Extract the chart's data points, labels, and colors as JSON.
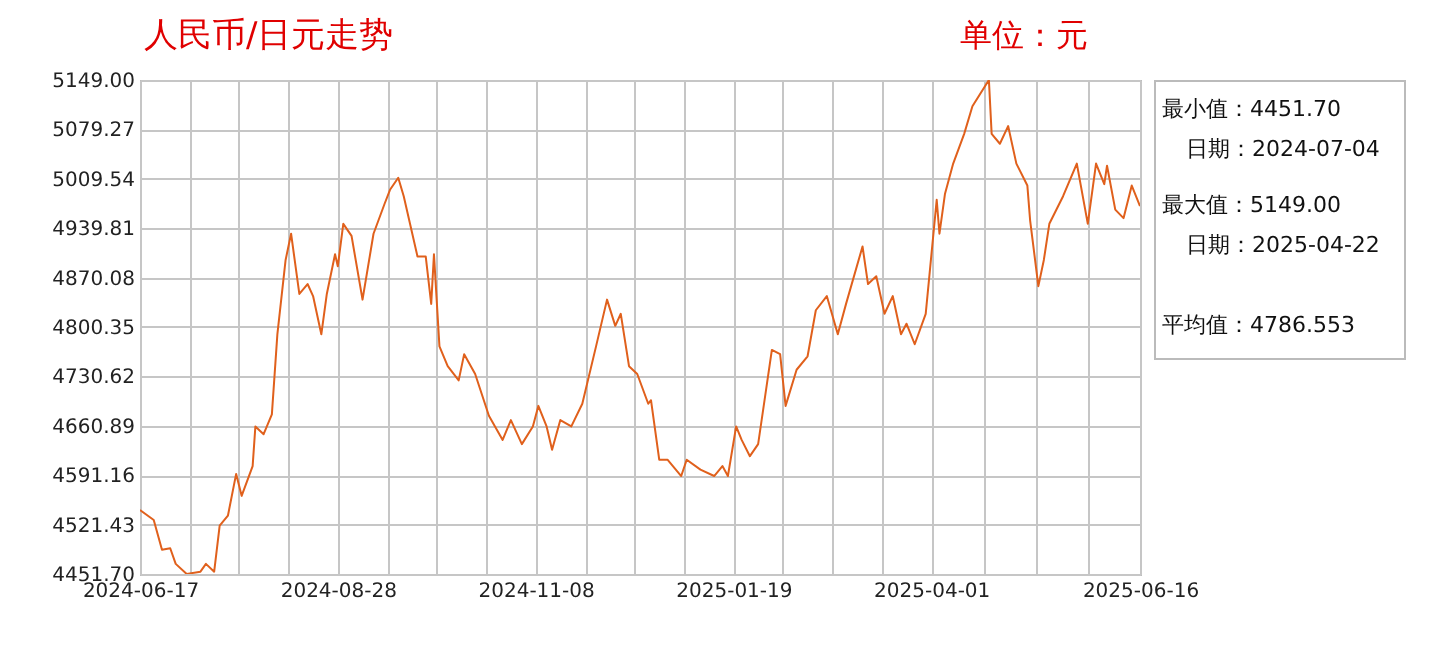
{
  "chart_data": {
    "type": "line",
    "title": "人民币/日元走势",
    "annotations": [
      "单位：元",
      "最小值：4451.70",
      "日期：2024-07-04",
      "最大值：5149.00",
      "日期：2025-04-22",
      "平均值：4786.553"
    ],
    "x": [
      "2024-06-17",
      "2024-06-22",
      "2024-06-25",
      "2024-06-28",
      "2024-06-30",
      "2024-07-04",
      "2024-07-09",
      "2024-07-11",
      "2024-07-14",
      "2024-07-16",
      "2024-07-19",
      "2024-07-22",
      "2024-07-24",
      "2024-07-28",
      "2024-07-29",
      "2024-08-01",
      "2024-08-04",
      "2024-08-06",
      "2024-08-09",
      "2024-08-11",
      "2024-08-14",
      "2024-08-17",
      "2024-08-19",
      "2024-08-22",
      "2024-08-24",
      "2024-08-27",
      "2024-08-28",
      "2024-08-30",
      "2024-09-02",
      "2024-09-06",
      "2024-09-10",
      "2024-09-14",
      "2024-09-16",
      "2024-09-19",
      "2024-09-21",
      "2024-09-26",
      "2024-09-29",
      "2024-10-01",
      "2024-10-02",
      "2024-10-04",
      "2024-10-07",
      "2024-10-11",
      "2024-10-13",
      "2024-10-17",
      "2024-10-22",
      "2024-10-27",
      "2024-10-30",
      "2024-11-03",
      "2024-11-07",
      "2024-11-09",
      "2024-11-12",
      "2024-11-14",
      "2024-11-17",
      "2024-11-21",
      "2024-11-25",
      "2024-11-30",
      "2024-12-04",
      "2024-12-07",
      "2024-12-09",
      "2024-12-12",
      "2024-12-15",
      "2024-12-19",
      "2024-12-20",
      "2024-12-23",
      "2024-12-26",
      "2024-12-31",
      "2025-01-02",
      "2025-01-07",
      "2025-01-12",
      "2025-01-15",
      "2025-01-17",
      "2025-01-20",
      "2025-01-22",
      "2025-01-25",
      "2025-01-28",
      "2025-02-02",
      "2025-02-05",
      "2025-02-07",
      "2025-02-11",
      "2025-02-15",
      "2025-02-18",
      "2025-02-22",
      "2025-02-26",
      "2025-03-01",
      "2025-03-07",
      "2025-03-09",
      "2025-03-12",
      "2025-03-15",
      "2025-03-18",
      "2025-03-21",
      "2025-03-23",
      "2025-03-26",
      "2025-03-30",
      "2025-04-03",
      "2025-04-04",
      "2025-04-06",
      "2025-04-09",
      "2025-04-13",
      "2025-04-16",
      "2025-04-22",
      "2025-04-23",
      "2025-04-26",
      "2025-04-29",
      "2025-05-02",
      "2025-05-06",
      "2025-05-07",
      "2025-05-10",
      "2025-05-12",
      "2025-05-14",
      "2025-05-19",
      "2025-05-24",
      "2025-05-28",
      "2025-05-31",
      "2025-06-03",
      "2025-06-04",
      "2025-06-07",
      "2025-06-10",
      "2025-06-13",
      "2025-06-16"
    ],
    "series": [
      {
        "color": "#e0601c",
        "values": [
          4542,
          4528,
          4486,
          4488,
          4466,
          4451.7,
          4455,
          4466,
          4455,
          4520,
          4534,
          4593,
          4562,
          4604,
          4660,
          4649,
          4677,
          4790,
          4895,
          4932,
          4847,
          4861,
          4844,
          4790,
          4847,
          4903,
          4886,
          4946,
          4929,
          4839,
          4932,
          4974,
          4994,
          5011,
          4985,
          4900,
          4900,
          4833,
          4903,
          4773,
          4745,
          4725,
          4762,
          4734,
          4675,
          4641,
          4669,
          4635,
          4660,
          4689,
          4660,
          4627,
          4669,
          4660,
          4692,
          4773,
          4839,
          4802,
          4819,
          4745,
          4734,
          4692,
          4697,
          4613,
          4613,
          4590,
          4613,
          4599,
          4590,
          4604,
          4590,
          4660,
          4641,
          4618,
          4635,
          4768,
          4762,
          4689,
          4740,
          4759,
          4824,
          4844,
          4790,
          4833,
          4914,
          4861,
          4872,
          4819,
          4844,
          4790,
          4805,
          4776,
          4819,
          4980,
          4932,
          4988,
          5031,
          5073,
          5112,
          5149,
          5073,
          5059,
          5084,
          5031,
          5000,
          4951,
          4858,
          4895,
          4946,
          4985,
          5031,
          4946,
          5031,
          5002,
          5028,
          4966,
          4954,
          5000,
          4971
        ]
      }
    ],
    "xlim": [
      "2024-06-17",
      "2025-06-16"
    ],
    "xticks": [
      {
        "value": "2024-06-17",
        "label": "2024-06-17"
      },
      {
        "value": "2024-07-05",
        "label": null
      },
      {
        "value": "2024-07-23",
        "label": null
      },
      {
        "value": "2024-08-10",
        "label": null
      },
      {
        "value": "2024-08-28",
        "label": "2024-08-28"
      },
      {
        "value": "2024-09-15",
        "label": null
      },
      {
        "value": "2024-10-03",
        "label": null
      },
      {
        "value": "2024-10-21",
        "label": null
      },
      {
        "value": "2024-11-08",
        "label": "2024-11-08"
      },
      {
        "value": "2024-11-26",
        "label": null
      },
      {
        "value": "2024-12-14",
        "label": null
      },
      {
        "value": "2025-01-01",
        "label": null
      },
      {
        "value": "2025-01-19",
        "label": "2025-01-19"
      },
      {
        "value": "2025-02-06",
        "label": null
      },
      {
        "value": "2025-02-24",
        "label": null
      },
      {
        "value": "2025-03-14",
        "label": null
      },
      {
        "value": "2025-04-01",
        "label": "2025-04-01"
      },
      {
        "value": "2025-04-20",
        "label": null
      },
      {
        "value": "2025-05-09",
        "label": null
      },
      {
        "value": "2025-05-28",
        "label": null
      },
      {
        "value": "2025-06-16",
        "label": "2025-06-16"
      }
    ],
    "ylim": [
      4451.7,
      5149
    ],
    "yticks": [
      {
        "value": 4451.7,
        "label": "4451.70"
      },
      {
        "value": 4521.43,
        "label": "4521.43"
      },
      {
        "value": 4591.16,
        "label": "4591.16"
      },
      {
        "value": 4660.89,
        "label": "4660.89"
      },
      {
        "value": 4730.62,
        "label": "4730.62"
      },
      {
        "value": 4800.35,
        "label": "4800.35"
      },
      {
        "value": 4870.08,
        "label": "4870.08"
      },
      {
        "value": 4939.81,
        "label": "4939.81"
      },
      {
        "value": 5009.54,
        "label": "5009.54"
      },
      {
        "value": 5079.27,
        "label": "5079.27"
      },
      {
        "value": 5149,
        "label": "5149.00"
      }
    ],
    "grid": true
  }
}
